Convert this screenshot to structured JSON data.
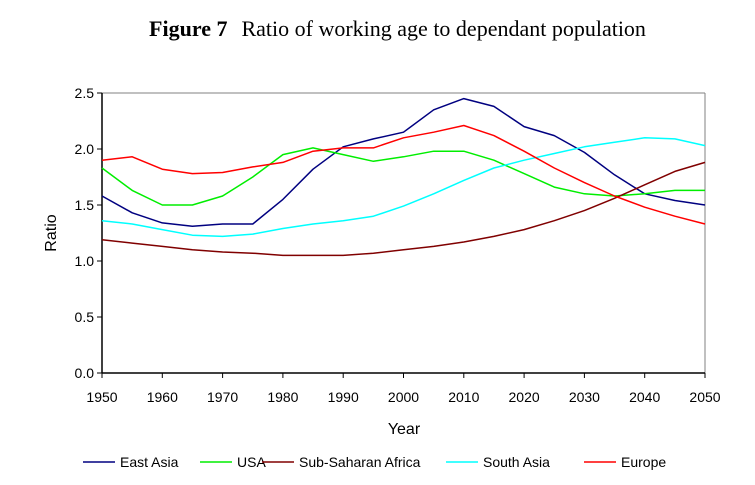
{
  "chart_data": {
    "type": "line",
    "title_prefix": "Figure 7",
    "title": "Ratio of working age to dependant population",
    "xlabel": "Year",
    "ylabel": "Ratio",
    "xlim": [
      1950,
      2050
    ],
    "ylim": [
      0,
      2.5
    ],
    "xticks": [
      "1950",
      "1960",
      "1970",
      "1980",
      "1990",
      "2000",
      "2010",
      "2020",
      "2030",
      "2040",
      "2050"
    ],
    "yticks": [
      "0.0",
      "0.5",
      "1.0",
      "1.5",
      "2.0",
      "2.5"
    ],
    "legend_position": "bottom",
    "x": [
      1950,
      1955,
      1960,
      1965,
      1970,
      1975,
      1980,
      1985,
      1990,
      1995,
      2000,
      2005,
      2010,
      2015,
      2020,
      2025,
      2030,
      2035,
      2040,
      2045,
      2050
    ],
    "series": [
      {
        "name": "East Asia",
        "color": "#000080",
        "values": [
          1.58,
          1.43,
          1.34,
          1.31,
          1.33,
          1.33,
          1.55,
          1.82,
          2.02,
          2.09,
          2.15,
          2.35,
          2.45,
          2.38,
          2.2,
          2.12,
          1.97,
          1.77,
          1.6,
          1.54,
          1.5
        ]
      },
      {
        "name": "USA",
        "color": "#00ee00",
        "values": [
          1.83,
          1.63,
          1.5,
          1.5,
          1.58,
          1.75,
          1.95,
          2.01,
          1.95,
          1.89,
          1.93,
          1.98,
          1.98,
          1.9,
          1.78,
          1.66,
          1.6,
          1.58,
          1.6,
          1.63,
          1.63
        ]
      },
      {
        "name": "Sub-Saharan Africa",
        "color": "#800000",
        "values": [
          1.19,
          1.16,
          1.13,
          1.1,
          1.08,
          1.07,
          1.05,
          1.05,
          1.05,
          1.07,
          1.1,
          1.13,
          1.17,
          1.22,
          1.28,
          1.36,
          1.45,
          1.56,
          1.68,
          1.8,
          1.88
        ]
      },
      {
        "name": "South Asia",
        "color": "#00ffff",
        "values": [
          1.36,
          1.33,
          1.28,
          1.23,
          1.22,
          1.24,
          1.29,
          1.33,
          1.36,
          1.4,
          1.49,
          1.6,
          1.72,
          1.83,
          1.9,
          1.96,
          2.02,
          2.06,
          2.1,
          2.09,
          2.03
        ]
      },
      {
        "name": "Europe",
        "color": "#ff0000",
        "values": [
          1.9,
          1.93,
          1.82,
          1.78,
          1.79,
          1.84,
          1.88,
          1.98,
          2.01,
          2.01,
          2.1,
          2.15,
          2.21,
          2.12,
          1.98,
          1.83,
          1.7,
          1.58,
          1.48,
          1.4,
          1.33
        ]
      }
    ]
  }
}
